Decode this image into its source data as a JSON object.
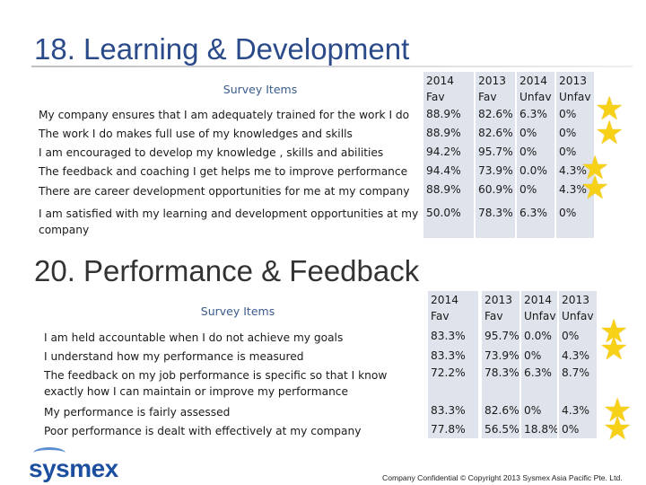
{
  "section1": {
    "title": "18. Learning & Development",
    "header": {
      "items": "Survey Items",
      "c1": [
        "2014",
        "Fav"
      ],
      "c2": [
        "2013",
        "Fav"
      ],
      "c3": [
        "2014",
        "Unfav"
      ],
      "c4": [
        "2013",
        "Unfav"
      ]
    },
    "rows": [
      {
        "item": "My company ensures that I am adequately trained for the work I do",
        "fav2014": "88.9%",
        "fav2013": "82.6%",
        "unfav2014": "6.3%",
        "unfav2013": "0%"
      },
      {
        "item": "The work I do makes full use of my knowledges and skills",
        "fav2014": "88.9%",
        "fav2013": "82.6%",
        "unfav2014": "0%",
        "unfav2013": "0%"
      },
      {
        "item": "I am encouraged to develop my knowledge , skills and abilities",
        "fav2014": "94.2%",
        "fav2013": "95.7%",
        "unfav2014": "0%",
        "unfav2013": "0%"
      },
      {
        "item": "The feedback and coaching I get helps me to improve performance",
        "fav2014": "94.4%",
        "fav2013": "73.9%",
        "unfav2014": "0.0%",
        "unfav2013": "4.3%"
      },
      {
        "item": "There are career development opportunities for me at my company",
        "fav2014": "88.9%",
        "fav2013": "60.9%",
        "unfav2014": "0%",
        "unfav2013": "4.3%"
      },
      {
        "item": "I am satisfied with my learning and development opportunities at my company",
        "fav2014": "50.0%",
        "fav2013": "78.3%",
        "unfav2014": "6.3%",
        "unfav2013": "0%"
      }
    ],
    "star_icon": "star-icon"
  },
  "section2": {
    "title": "20. Performance & Feedback",
    "header": {
      "items": "Survey Items",
      "c1": [
        "2014",
        "Fav"
      ],
      "c2": [
        "2013",
        "Fav"
      ],
      "c3": [
        "2014",
        "Unfav"
      ],
      "c4": [
        "2013",
        "Unfav"
      ]
    },
    "rows": [
      {
        "item": "I am held accountable when I do not achieve my goals",
        "fav2014": "83.3%",
        "fav2013": "95.7%",
        "unfav2014": "0.0%",
        "unfav2013": "0%"
      },
      {
        "item": "I understand how my performance is measured",
        "fav2014": "83.3%",
        "fav2013": "73.9%",
        "unfav2014": "0%",
        "unfav2013": "4.3%"
      },
      {
        "item": "The feedback on my job performance is specific so that I know exactly how I can maintain or improve my performance",
        "fav2014": "72.2%",
        "fav2013": "78.3%",
        "unfav2014": "6.3%",
        "unfav2013": "8.7%"
      },
      {
        "item": "My performance is fairly assessed",
        "fav2014": "83.3%",
        "fav2013": "82.6%",
        "unfav2014": "0%",
        "unfav2013": "4.3%"
      },
      {
        "item": "Poor performance is dealt with effectively at my company",
        "fav2014": "77.8%",
        "fav2013": "56.5%",
        "unfav2014": "18.8%",
        "unfav2013": "0%"
      }
    ]
  },
  "brand": {
    "logo_text": "sysmex",
    "accent": "#1d4fa0"
  },
  "footer": {
    "text": "Company Confidential © Copyright 2013 Sysmex Asia Pacific Pte. Ltd."
  }
}
